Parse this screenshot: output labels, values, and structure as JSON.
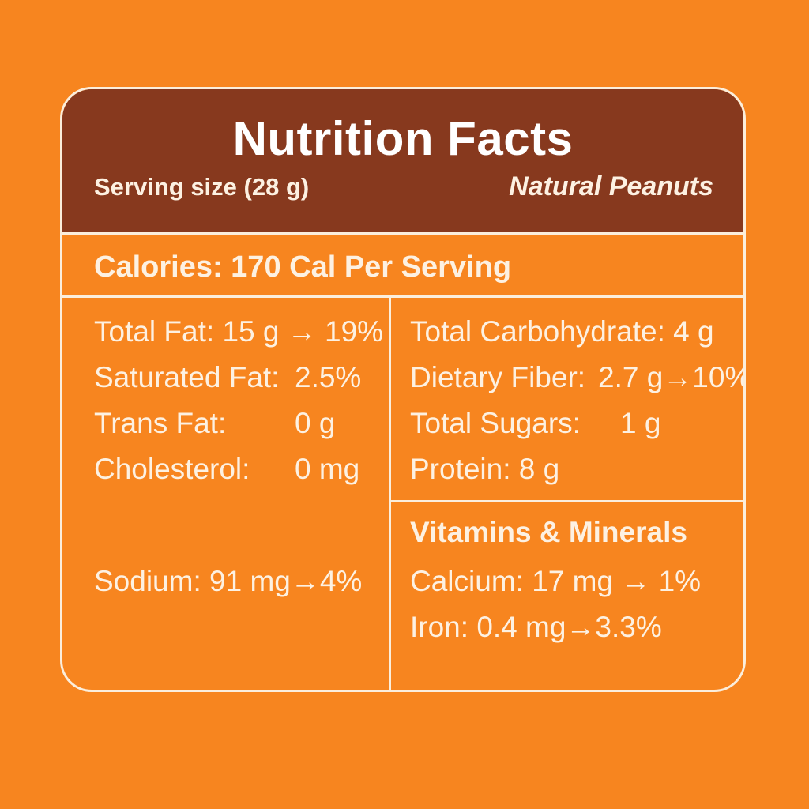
{
  "header": {
    "title": "Nutrition Facts",
    "serving_size": "Serving size (28 g)",
    "product_name": "Natural Peanuts"
  },
  "calories": "Calories: 170 Cal Per Serving",
  "left_column": {
    "total_fat": "Total Fat: 15 g → 19%",
    "saturated_fat_label": "Saturated Fat:",
    "saturated_fat_value": "2.5%",
    "trans_fat_label": "Trans Fat:",
    "trans_fat_value": "0 g",
    "cholesterol_label": "Cholesterol:",
    "cholesterol_value": "0 mg",
    "sodium": "Sodium:  91 mg→4%"
  },
  "right_column": {
    "total_carbohydrate": "Total Carbohydrate: 4 g",
    "dietary_fiber_label": "Dietary Fiber:",
    "dietary_fiber_value": "2.7 g→10%",
    "total_sugars_label": "Total Sugars:",
    "total_sugars_value": "1 g",
    "protein": "Protein: 8 g"
  },
  "vitamins": {
    "heading": "Vitamins & Minerals",
    "calcium": "Calcium: 17 mg → 1%",
    "iron": "Iron: 0.4 mg→3.3%"
  },
  "colors": {
    "background": "#f7851f",
    "header": "#87391e",
    "border": "#fbeedc",
    "text": "#fdf1e2"
  }
}
